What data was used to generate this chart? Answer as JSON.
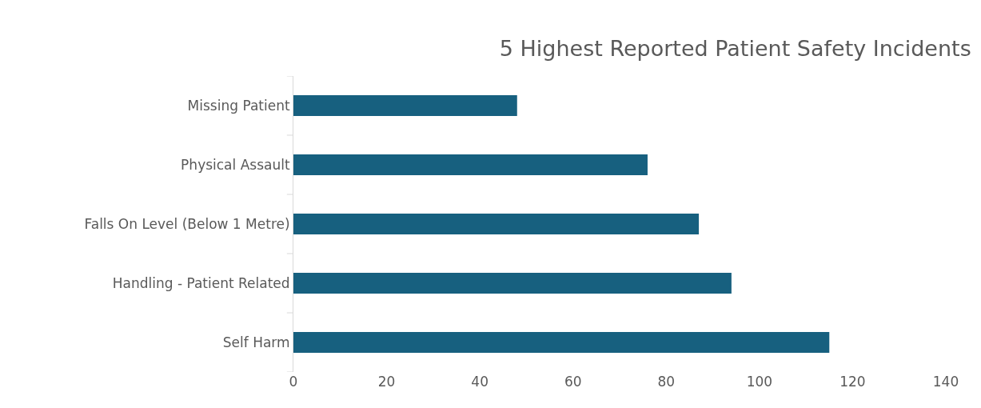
{
  "chart_data": {
    "type": "bar",
    "orientation": "horizontal",
    "title": "5 Highest Reported Patient Safety Incidents",
    "categories": [
      "Missing Patient",
      "Physical Assault",
      "Falls On Level (Below 1 Metre)",
      "Handling - Patient Related",
      "Self Harm"
    ],
    "values": [
      48,
      76,
      87,
      94,
      115
    ],
    "color": "#17607f",
    "xlim": [
      0,
      140
    ],
    "xticks": [
      0,
      20,
      40,
      60,
      80,
      100,
      120,
      140
    ],
    "grid": false,
    "legend": false
  }
}
